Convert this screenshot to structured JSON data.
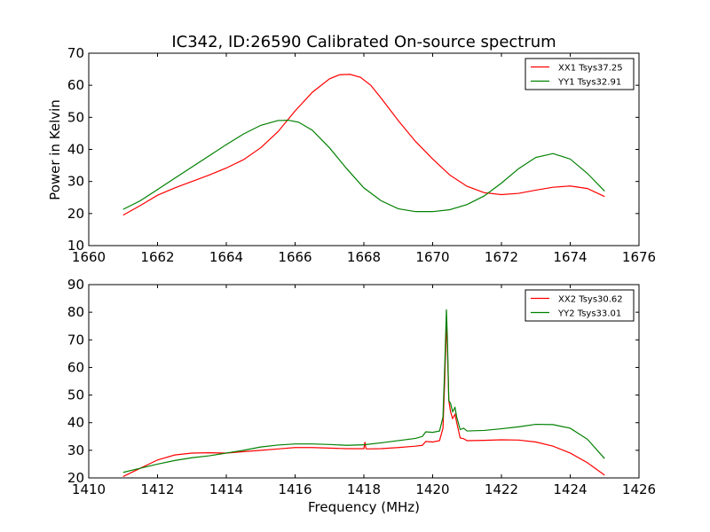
{
  "title": "IC342, ID:26590 Calibrated On-source spectrum",
  "ylabel": "Power in Kelvin",
  "xlabel": "Frequency (MHz)",
  "chart_data": [
    {
      "type": "line",
      "xlim": [
        1660,
        1676
      ],
      "ylim": [
        10,
        70
      ],
      "xticks": [
        "1660",
        "1662",
        "1664",
        "1666",
        "1668",
        "1670",
        "1672",
        "1674",
        "1676"
      ],
      "yticks": [
        "10",
        "20",
        "30",
        "40",
        "50",
        "60",
        "70"
      ],
      "legend_position": "top-right",
      "series": [
        {
          "name": "XX1 Tsys37.25",
          "color": "#ff0000",
          "x": [
            1661.0,
            1661.5,
            1662.0,
            1662.5,
            1663.0,
            1663.5,
            1664.0,
            1664.5,
            1665.0,
            1665.5,
            1666.0,
            1666.5,
            1667.0,
            1667.3,
            1667.6,
            1667.9,
            1668.2,
            1668.5,
            1669.0,
            1669.5,
            1670.0,
            1670.5,
            1671.0,
            1671.5,
            1672.0,
            1672.5,
            1673.0,
            1673.5,
            1674.0,
            1674.5,
            1675.0
          ],
          "y": [
            19.5,
            22.5,
            25.7,
            28.0,
            30.0,
            32.0,
            34.2,
            36.8,
            40.5,
            45.5,
            52.0,
            57.8,
            62.0,
            63.3,
            63.4,
            62.5,
            60.0,
            56.0,
            49.0,
            42.5,
            37.0,
            32.0,
            28.5,
            26.5,
            25.9,
            26.3,
            27.3,
            28.2,
            28.6,
            27.8,
            25.3
          ]
        },
        {
          "name": "YY1 Tsys32.91",
          "color": "#008000",
          "x": [
            1661.0,
            1661.5,
            1662.0,
            1662.5,
            1663.0,
            1663.5,
            1664.0,
            1664.5,
            1665.0,
            1665.5,
            1665.8,
            1666.1,
            1666.5,
            1667.0,
            1667.5,
            1668.0,
            1668.5,
            1669.0,
            1669.5,
            1670.0,
            1670.5,
            1671.0,
            1671.5,
            1672.0,
            1672.5,
            1673.0,
            1673.5,
            1674.0,
            1674.5,
            1675.0
          ],
          "y": [
            21.3,
            24.0,
            27.5,
            31.0,
            34.5,
            38.0,
            41.5,
            44.8,
            47.5,
            49.0,
            49.1,
            48.5,
            46.0,
            40.5,
            34.0,
            28.0,
            24.0,
            21.5,
            20.6,
            20.6,
            21.2,
            22.8,
            25.5,
            29.5,
            34.0,
            37.5,
            38.7,
            37.0,
            32.5,
            27.0
          ]
        }
      ]
    },
    {
      "type": "line",
      "xlim": [
        1410,
        1426
      ],
      "ylim": [
        20,
        90
      ],
      "xticks": [
        "1410",
        "1412",
        "1414",
        "1416",
        "1418",
        "1420",
        "1422",
        "1424",
        "1426"
      ],
      "yticks": [
        "20",
        "30",
        "40",
        "50",
        "60",
        "70",
        "80",
        "90"
      ],
      "legend_position": "top-right",
      "series": [
        {
          "name": "XX2 Tsys30.62",
          "color": "#ff0000",
          "x": [
            1411.0,
            1411.5,
            1412.0,
            1412.5,
            1413.0,
            1413.5,
            1414.0,
            1414.5,
            1415.0,
            1415.5,
            1416.0,
            1416.5,
            1417.0,
            1417.5,
            1418.0,
            1418.03,
            1418.06,
            1418.1,
            1418.5,
            1419.0,
            1419.5,
            1419.7,
            1419.8,
            1420.0,
            1420.2,
            1420.3,
            1420.35,
            1420.4,
            1420.43,
            1420.47,
            1420.52,
            1420.58,
            1420.65,
            1420.7,
            1420.8,
            1420.9,
            1421.0,
            1421.5,
            1422.0,
            1422.5,
            1423.0,
            1423.5,
            1424.0,
            1424.5,
            1425.0
          ],
          "y": [
            20.5,
            23.5,
            26.5,
            28.3,
            29.0,
            29.1,
            29.0,
            29.5,
            30.0,
            30.5,
            31.0,
            31.0,
            30.8,
            30.6,
            30.6,
            33.0,
            30.6,
            30.5,
            30.6,
            31.0,
            31.5,
            31.8,
            33.2,
            33.0,
            33.5,
            38.0,
            55.0,
            76.0,
            67.0,
            48.0,
            44.0,
            41.5,
            43.0,
            40.0,
            34.5,
            34.2,
            33.5,
            33.6,
            33.8,
            33.7,
            33.0,
            31.5,
            29.0,
            25.5,
            21.0
          ]
        },
        {
          "name": "YY2 Tsys33.01",
          "color": "#008000",
          "x": [
            1411.0,
            1411.5,
            1412.0,
            1412.5,
            1413.0,
            1413.5,
            1414.0,
            1414.5,
            1415.0,
            1415.5,
            1416.0,
            1416.5,
            1417.0,
            1417.5,
            1418.0,
            1418.5,
            1419.0,
            1419.5,
            1419.7,
            1419.8,
            1420.0,
            1420.2,
            1420.3,
            1420.35,
            1420.4,
            1420.43,
            1420.47,
            1420.52,
            1420.58,
            1420.65,
            1420.7,
            1420.8,
            1420.9,
            1421.0,
            1421.5,
            1422.0,
            1422.5,
            1423.0,
            1423.5,
            1424.0,
            1424.5,
            1425.0
          ],
          "y": [
            22.0,
            23.5,
            25.0,
            26.3,
            27.3,
            28.0,
            29.0,
            30.0,
            31.2,
            31.9,
            32.3,
            32.3,
            32.1,
            31.8,
            32.0,
            32.7,
            33.5,
            34.3,
            35.0,
            36.7,
            36.5,
            37.0,
            42.0,
            60.0,
            81.0,
            70.0,
            48.0,
            47.0,
            44.0,
            45.5,
            42.0,
            37.5,
            38.0,
            37.0,
            37.2,
            37.8,
            38.5,
            39.4,
            39.3,
            38.0,
            34.0,
            27.0
          ]
        }
      ]
    }
  ]
}
